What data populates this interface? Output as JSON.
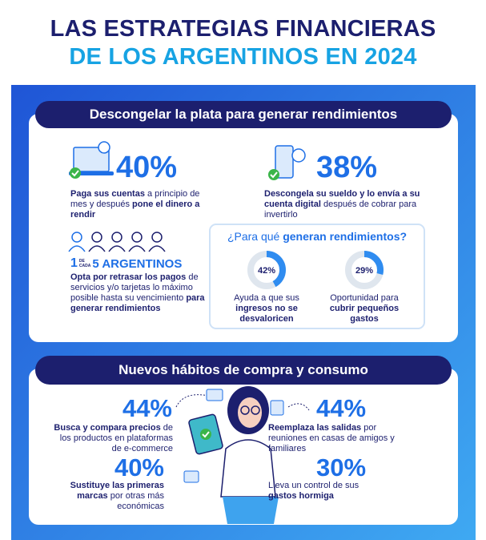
{
  "header": {
    "line1": "LAS ESTRATEGIAS FINANCIERAS",
    "line2": "DE LOS ARGENTINOS EN 2024"
  },
  "section1": {
    "title": "Descongelar la plata para generar rendimientos",
    "stats": [
      {
        "value": "40%",
        "text": [
          {
            "t": "Paga sus cuentas",
            "b": true
          },
          {
            "t": " a principio de mes y después "
          },
          {
            "t": "pone el dinero a rendir",
            "b": true
          }
        ]
      },
      {
        "value": "38%",
        "text": [
          {
            "t": "Descongela su sueldo y lo envía a su cuenta digital",
            "b": true
          },
          {
            "t": " después de cobrar para invertirlo"
          }
        ]
      }
    ],
    "ratio": {
      "one": "1",
      "de": "DE",
      "cada": "CADA",
      "five": "5 ARGENTINOS",
      "text": [
        {
          "t": "Opta por retrasar los pagos",
          "b": true
        },
        {
          "t": " de servicios y/o tarjetas lo máximo posible hasta su vencimiento "
        },
        {
          "t": "para generar rendimientos",
          "b": true
        }
      ]
    },
    "question": {
      "prefix": "¿Para qué ",
      "bold": "generan rendimientos?",
      "items": [
        {
          "value": 42,
          "label": "42%",
          "text": [
            {
              "t": "Ayuda a que sus "
            },
            {
              "t": "ingresos no se desvaloricen",
              "b": true
            }
          ]
        },
        {
          "value": 29,
          "label": "29%",
          "text": [
            {
              "t": "Oportunidad para "
            },
            {
              "t": "cubrir pequeños gastos",
              "b": true
            }
          ]
        }
      ]
    }
  },
  "section2": {
    "title": "Nuevos hábitos de compra y consumo",
    "left": [
      {
        "value": "44%",
        "text": [
          {
            "t": "Busca y compara precios",
            "b": true
          },
          {
            "t": " de los productos en plataformas de e-commerce"
          }
        ]
      },
      {
        "value": "40%",
        "text": [
          {
            "t": "Sustituye las primeras marcas",
            "b": true
          },
          {
            "t": " por otras más económicas"
          }
        ]
      }
    ],
    "right": [
      {
        "value": "44%",
        "text": [
          {
            "t": "Reemplaza las salidas",
            "b": true
          },
          {
            "t": " por reuniones en casas de amigos y familiares"
          }
        ]
      },
      {
        "value": "30%",
        "text": [
          {
            "t": "Lleva un control de sus "
          },
          {
            "t": "gastos hormiga",
            "b": true
          }
        ]
      }
    ]
  }
}
